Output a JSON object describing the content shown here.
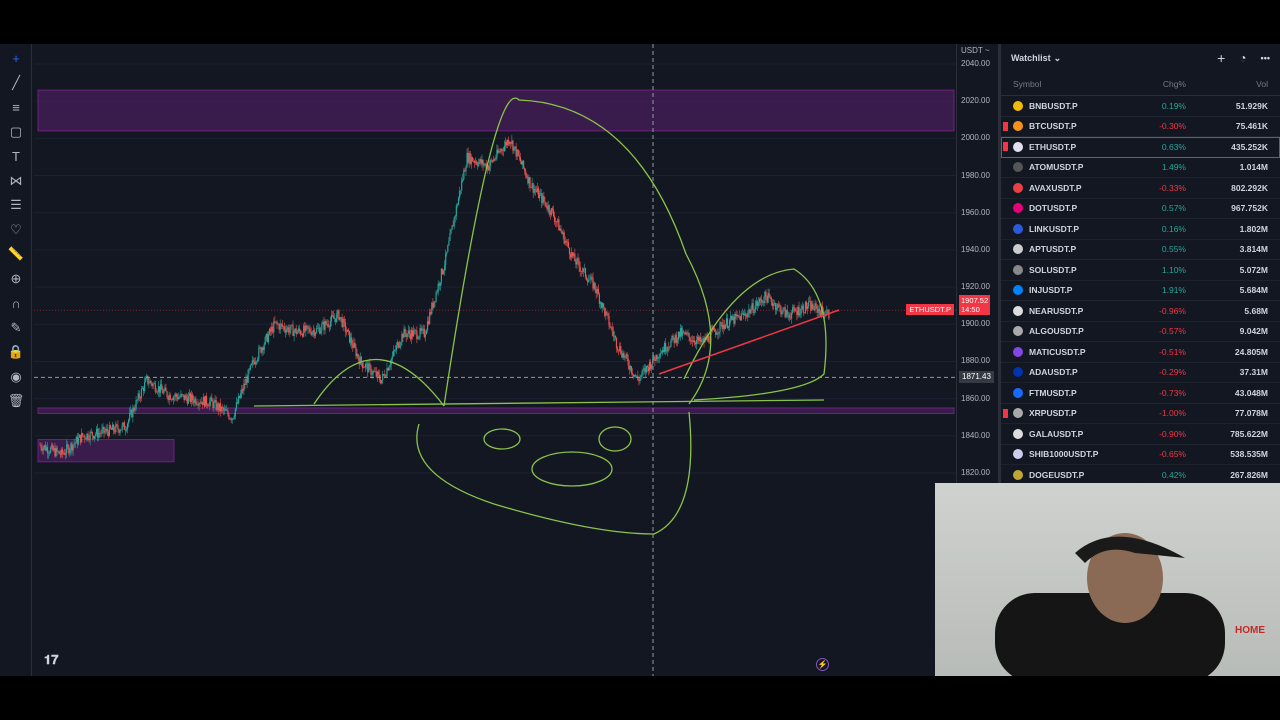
{
  "toolbar": {
    "tools": [
      "crosshair-icon",
      "trend-line-icon",
      "fib-icon",
      "rectangle-icon",
      "text-icon",
      "pattern-icon",
      "forecast-icon",
      "heart-icon",
      "ruler-icon",
      "zoom-in-icon",
      "magnet-icon",
      "pencil-lock-icon",
      "lock-icon",
      "eye-icon",
      "trash-icon"
    ]
  },
  "axis": {
    "currency": "USDT ~",
    "ticks": [
      "2040.00",
      "2020.00",
      "2000.00",
      "1980.00",
      "1960.00",
      "1940.00",
      "1920.00",
      "1900.00",
      "1880.00",
      "1860.00",
      "1840.00",
      "1820.00"
    ],
    "last_symbol": "ETHUSDT.P",
    "last_price": "1907.52",
    "countdown": "14:50",
    "crosshair_price": "1871.43"
  },
  "chart_data": {
    "type": "candlestick",
    "symbol": "ETHUSDT.P",
    "ylim": [
      1820,
      2040
    ],
    "closes": [
      1835,
      1830,
      1840,
      1842,
      1845,
      1870,
      1862,
      1860,
      1858,
      1850,
      1880,
      1900,
      1896,
      1897,
      1905,
      1880,
      1870,
      1895,
      1895,
      1935,
      1990,
      1985,
      2000,
      1975,
      1960,
      1935,
      1920,
      1890,
      1870,
      1885,
      1895,
      1890,
      1900,
      1905,
      1915,
      1905,
      1910,
      1905
    ],
    "up_color": "#26a69a",
    "down_color": "#ef5350",
    "zones": [
      [
        2004,
        2026
      ],
      [
        1852,
        1855
      ],
      [
        1826,
        1838
      ]
    ]
  },
  "watchlist": {
    "title": "Watchlist",
    "cols": {
      "symbol": "Symbol",
      "chg": "Chg%",
      "vol": "Vol"
    },
    "rows": [
      {
        "s": "BNBUSDT.P",
        "c": "0.19%",
        "v": "51.929K",
        "color": "#f0b90b"
      },
      {
        "s": "BTCUSDT.P",
        "c": "-0.30%",
        "v": "75.461K",
        "color": "#f7931a",
        "flag": true
      },
      {
        "s": "ETHUSDT.P",
        "c": "0.63%",
        "v": "435.252K",
        "color": "#e0e0f0",
        "flag": true,
        "sel": true
      },
      {
        "s": "ATOMUSDT.P",
        "c": "1.49%",
        "v": "1.014M",
        "color": "#555"
      },
      {
        "s": "AVAXUSDT.P",
        "c": "-0.33%",
        "v": "802.292K",
        "color": "#e84142"
      },
      {
        "s": "DOTUSDT.P",
        "c": "0.57%",
        "v": "967.752K",
        "color": "#e6007a"
      },
      {
        "s": "LINKUSDT.P",
        "c": "0.16%",
        "v": "1.802M",
        "color": "#2a5ada"
      },
      {
        "s": "APTUSDT.P",
        "c": "0.55%",
        "v": "3.814M",
        "color": "#ccc"
      },
      {
        "s": "SOLUSDT.P",
        "c": "1.10%",
        "v": "5.072M",
        "color": "#888"
      },
      {
        "s": "INJUSDT.P",
        "c": "1.91%",
        "v": "5.684M",
        "color": "#0082fa"
      },
      {
        "s": "NEARUSDT.P",
        "c": "-0.96%",
        "v": "5.68M",
        "color": "#ddd"
      },
      {
        "s": "ALGOUSDT.P",
        "c": "-0.57%",
        "v": "9.042M",
        "color": "#aaa"
      },
      {
        "s": "MATICUSDT.P",
        "c": "-0.51%",
        "v": "24.805M",
        "color": "#8247e5"
      },
      {
        "s": "ADAUSDT.P",
        "c": "-0.29%",
        "v": "37.31M",
        "color": "#0033ad"
      },
      {
        "s": "FTMUSDT.P",
        "c": "-0.73%",
        "v": "43.048M",
        "color": "#1969ff"
      },
      {
        "s": "XRPUSDT.P",
        "c": "-1.00%",
        "v": "77.078M",
        "color": "#aaa",
        "flag": true
      },
      {
        "s": "GALAUSDT.P",
        "c": "-0.90%",
        "v": "785.622M",
        "color": "#ddd"
      },
      {
        "s": "SHIB1000USDT.P",
        "c": "-0.65%",
        "v": "538.535M",
        "color": "#cce"
      },
      {
        "s": "DOGEUSDT.P",
        "c": "0.42%",
        "v": "267.826M",
        "color": "#c2a633"
      }
    ]
  },
  "colors": {
    "green": "#26a69a",
    "red": "#f23645",
    "drawing": "#8bc34a",
    "zone": "#4a1f5e"
  }
}
